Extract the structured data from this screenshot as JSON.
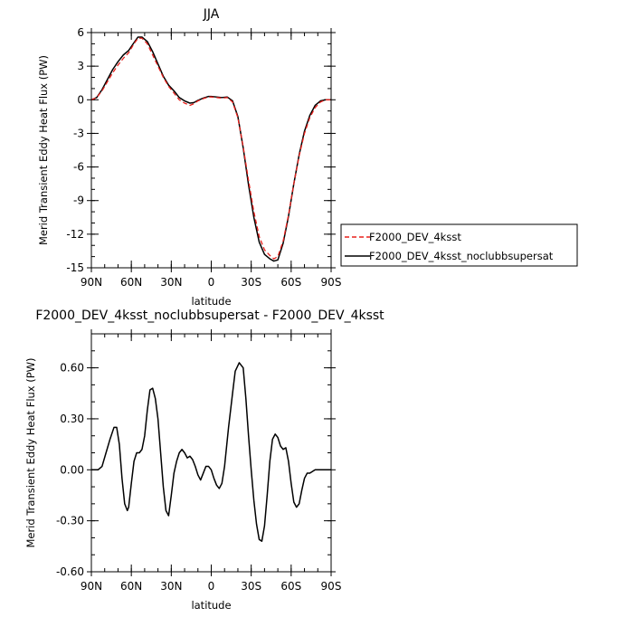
{
  "chart_data": [
    {
      "type": "line",
      "title": "JJA",
      "xlabel": "latitude",
      "ylabel": "Merid Transient Eddy Heat Flux (PW)",
      "xlim": [
        90,
        -90
      ],
      "ylim": [
        -15,
        6
      ],
      "xticks": [
        90,
        60,
        30,
        0,
        -30,
        -60,
        -90
      ],
      "xtick_labels": [
        "90N",
        "60N",
        "30N",
        "0",
        "30S",
        "60S",
        "90S"
      ],
      "yticks": [
        -15,
        -12,
        -9,
        -6,
        -3,
        0,
        3,
        6
      ],
      "ytick_labels": [
        "-15",
        "-12",
        "-9",
        "-6",
        "-3",
        "0",
        "3",
        "6"
      ],
      "legend_position": "right",
      "series": [
        {
          "name": "F2000_DEV_4ksst",
          "color": "#e8201c",
          "dash": "dashed",
          "x": [
            90,
            86,
            82,
            78,
            74,
            70,
            66,
            62,
            58,
            55,
            52,
            48,
            44,
            40,
            36,
            32,
            28,
            24,
            20,
            16,
            13,
            10,
            6,
            2,
            0,
            -4,
            -8,
            -12,
            -16,
            -20,
            -24,
            -28,
            -32,
            -36,
            -40,
            -44,
            -47,
            -50,
            -54,
            -58,
            -62,
            -66,
            -70,
            -74,
            -78,
            -82,
            -86,
            -90
          ],
          "y": [
            0,
            0.2,
            0.8,
            1.6,
            2.4,
            3.1,
            3.7,
            4.2,
            5.0,
            5.5,
            5.5,
            5.0,
            4.0,
            3.0,
            2.0,
            1.2,
            0.6,
            0.0,
            -0.3,
            -0.5,
            -0.35,
            -0.1,
            0.1,
            0.25,
            0.25,
            0.2,
            0.15,
            0.2,
            -0.2,
            -1.6,
            -4.2,
            -7.2,
            -10.0,
            -12.2,
            -13.4,
            -13.9,
            -14.2,
            -14.0,
            -12.6,
            -10.3,
            -7.5,
            -5.0,
            -3.0,
            -1.6,
            -0.7,
            -0.2,
            0.0,
            0.0
          ]
        },
        {
          "name": "F2000_DEV_4ksst_noclubbsupersat",
          "color": "#000000",
          "dash": "solid",
          "x": [
            90,
            86,
            82,
            78,
            74,
            70,
            66,
            62,
            58,
            55,
            52,
            48,
            44,
            40,
            36,
            32,
            28,
            24,
            20,
            16,
            13,
            10,
            6,
            2,
            0,
            -4,
            -8,
            -12,
            -16,
            -20,
            -24,
            -28,
            -32,
            -36,
            -40,
            -44,
            -47,
            -50,
            -54,
            -58,
            -62,
            -66,
            -70,
            -74,
            -78,
            -82,
            -86,
            -90
          ],
          "y": [
            0,
            0.2,
            0.9,
            1.8,
            2.7,
            3.4,
            4.0,
            4.4,
            5.1,
            5.6,
            5.6,
            5.2,
            4.3,
            3.2,
            2.1,
            1.3,
            0.8,
            0.2,
            -0.1,
            -0.3,
            -0.25,
            -0.05,
            0.15,
            0.3,
            0.3,
            0.25,
            0.2,
            0.25,
            -0.1,
            -1.5,
            -4.3,
            -7.6,
            -10.5,
            -12.7,
            -13.8,
            -14.2,
            -14.4,
            -14.3,
            -12.8,
            -10.4,
            -7.5,
            -4.9,
            -2.8,
            -1.4,
            -0.5,
            -0.1,
            0.0,
            0.0
          ]
        }
      ]
    },
    {
      "type": "line",
      "title": "F2000_DEV_4ksst_noclubbsupersat - F2000_DEV_4ksst",
      "xlabel": "latitude",
      "ylabel": "Merid Transient Eddy Heat Flux (PW)",
      "xlim": [
        90,
        -90
      ],
      "ylim": [
        -0.6,
        0.8
      ],
      "xticks": [
        90,
        60,
        30,
        0,
        -30,
        -60,
        -90
      ],
      "xtick_labels": [
        "90N",
        "60N",
        "30N",
        "0",
        "30S",
        "60S",
        "90S"
      ],
      "yticks": [
        -0.6,
        -0.3,
        0.0,
        0.3,
        0.6
      ],
      "ytick_labels": [
        "-0.60",
        "-0.30",
        "0.00",
        "0.30",
        "0.60"
      ],
      "series": [
        {
          "color": "#000000",
          "dash": "solid",
          "x": [
            90,
            85,
            82,
            79,
            76,
            73,
            71,
            69,
            67,
            65,
            63,
            62,
            60,
            58,
            56,
            54,
            52,
            50,
            48,
            46,
            44,
            42,
            40,
            38,
            36,
            34,
            32,
            30,
            28,
            26,
            24,
            22,
            20,
            18,
            16,
            14,
            12,
            10,
            8,
            6,
            4,
            2,
            0,
            -2,
            -4,
            -6,
            -8,
            -10,
            -13,
            -16,
            -18,
            -21,
            -24,
            -26,
            -28,
            -30,
            -32,
            -34,
            -36,
            -38,
            -40,
            -42,
            -44,
            -46,
            -48,
            -50,
            -52,
            -54,
            -56,
            -58,
            -60,
            -62,
            -64,
            -66,
            -68,
            -70,
            -72,
            -74,
            -76,
            -78,
            -81,
            -84,
            -87,
            -90
          ],
          "y": [
            0.0,
            0.0,
            0.02,
            0.1,
            0.18,
            0.25,
            0.25,
            0.15,
            -0.05,
            -0.2,
            -0.24,
            -0.22,
            -0.08,
            0.05,
            0.1,
            0.1,
            0.12,
            0.2,
            0.35,
            0.47,
            0.48,
            0.42,
            0.3,
            0.1,
            -0.1,
            -0.24,
            -0.27,
            -0.15,
            -0.02,
            0.05,
            0.1,
            0.12,
            0.1,
            0.07,
            0.08,
            0.06,
            0.02,
            -0.03,
            -0.06,
            -0.02,
            0.02,
            0.02,
            0.0,
            -0.05,
            -0.09,
            -0.11,
            -0.08,
            0.02,
            0.25,
            0.45,
            0.58,
            0.63,
            0.6,
            0.42,
            0.2,
            0.0,
            -0.18,
            -0.32,
            -0.41,
            -0.42,
            -0.33,
            -0.15,
            0.05,
            0.18,
            0.21,
            0.19,
            0.14,
            0.12,
            0.13,
            0.05,
            -0.08,
            -0.19,
            -0.22,
            -0.2,
            -0.12,
            -0.05,
            -0.02,
            -0.02,
            -0.01,
            0.0,
            0.0,
            0.0,
            0.0,
            0.0
          ]
        }
      ]
    }
  ]
}
